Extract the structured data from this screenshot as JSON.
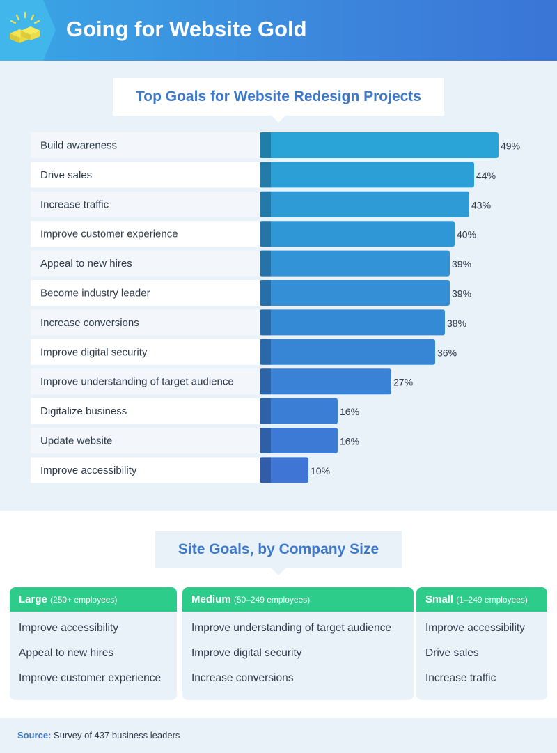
{
  "header": {
    "title": "Going for Website Gold",
    "icon": "gold-bars-icon"
  },
  "chart_data": {
    "type": "bar",
    "orientation": "horizontal",
    "title": "Top Goals for Website Redesign Projects",
    "categories": [
      "Build awareness",
      "Drive sales",
      "Increase traffic",
      "Improve customer experience",
      "Appeal to new hires",
      "Become industry leader",
      "Increase conversions",
      "Improve digital security",
      "Improve understanding of target audience",
      "Digitalize business",
      "Update website",
      "Improve accessibility"
    ],
    "values": [
      49,
      44,
      43,
      40,
      39,
      39,
      38,
      36,
      27,
      16,
      16,
      10
    ],
    "value_labels": [
      "49%",
      "44%",
      "43%",
      "40%",
      "39%",
      "39%",
      "38%",
      "36%",
      "27%",
      "16%",
      "16%",
      "10%"
    ],
    "unit": "%",
    "xlabel": "",
    "ylabel": "",
    "colors": {
      "top": "#2aa3d6",
      "bottom": "#3f76d6"
    }
  },
  "size_section": {
    "title": "Site Goals, by Company Size",
    "columns": [
      {
        "name": "Large",
        "range": "(250+ employees)",
        "items": [
          "Improve accessibility",
          "Appeal to new hires",
          "Improve customer experience"
        ]
      },
      {
        "name": "Medium",
        "range": "(50–249 employees)",
        "items": [
          "Improve understanding of target audience",
          "Improve digital security",
          "Increase conversions"
        ]
      },
      {
        "name": "Small",
        "range": "(1–249 employees)",
        "items": [
          "Improve accessibility",
          "Drive sales",
          "Increase traffic"
        ]
      }
    ]
  },
  "footer": {
    "source_label": "Source:",
    "source_text": "Survey of 437 business leaders"
  }
}
